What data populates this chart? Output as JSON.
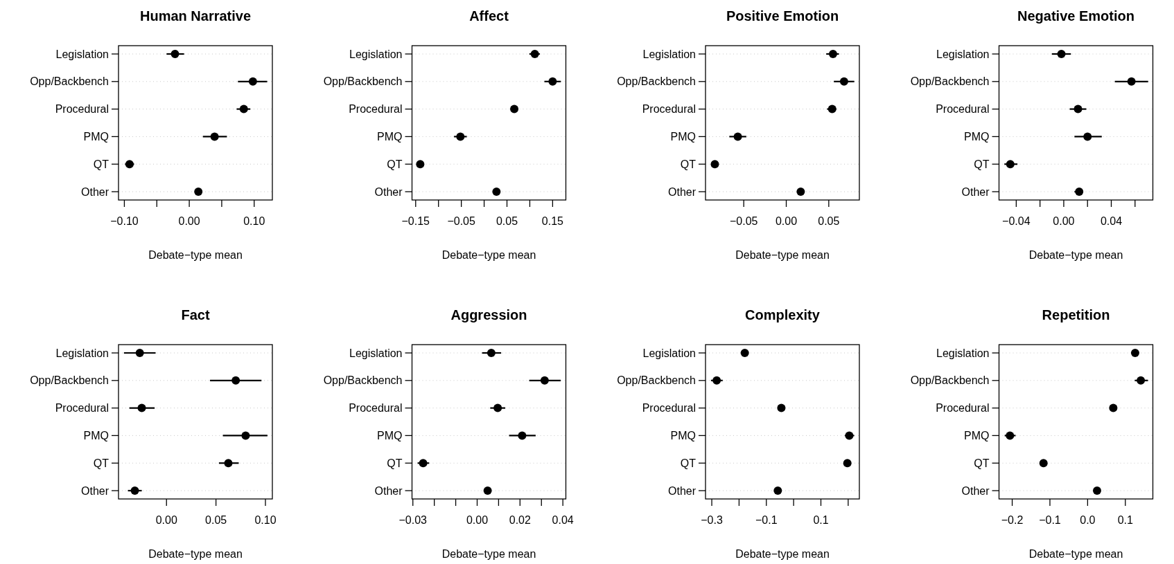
{
  "chart_data": [
    {
      "type": "scatter",
      "orientation": "horizontal",
      "title": "Human Narrative",
      "xlabel": "Debate−type mean",
      "categories": [
        "Legislation",
        "Opp/Backbench",
        "Procedural",
        "PMQ",
        "QT",
        "Other"
      ],
      "values": [
        -0.022,
        0.098,
        0.084,
        0.039,
        -0.092,
        0.014
      ],
      "errors": [
        [
          -0.035,
          -0.008
        ],
        [
          0.075,
          0.12
        ],
        [
          0.073,
          0.094
        ],
        [
          0.021,
          0.058
        ],
        [
          -0.099,
          -0.085
        ],
        [
          0.01,
          0.019
        ]
      ],
      "color": "#000000",
      "marker": "circle",
      "grid": "y",
      "xlim": [
        -0.109,
        0.128
      ],
      "xticks": [
        {
          "value": -0.1,
          "label": "−0.10"
        },
        {
          "value": -0.05,
          "label": null
        },
        {
          "value": 0,
          "label": "0.00"
        },
        {
          "value": 0.05,
          "label": null
        },
        {
          "value": 0.1,
          "label": "0.10"
        }
      ]
    },
    {
      "type": "scatter",
      "orientation": "horizontal",
      "title": "Affect",
      "xlabel": "Debate−type mean",
      "categories": [
        "Legislation",
        "Opp/Backbench",
        "Procedural",
        "PMQ",
        "QT",
        "Other"
      ],
      "values": [
        0.111,
        0.15,
        0.066,
        -0.052,
        -0.14,
        0.027
      ],
      "errors": [
        [
          0.099,
          0.122
        ],
        [
          0.132,
          0.168
        ],
        [
          0.06,
          0.073
        ],
        [
          -0.066,
          -0.038
        ],
        [
          -0.147,
          -0.134
        ],
        [
          0.022,
          0.032
        ]
      ],
      "color": "#000000",
      "marker": "circle",
      "grid": "y",
      "xlim": [
        -0.158,
        0.179
      ],
      "xticks": [
        {
          "value": -0.15,
          "label": "−0.15"
        },
        {
          "value": -0.1,
          "label": null
        },
        {
          "value": -0.05,
          "label": "−0.05"
        },
        {
          "value": 0,
          "label": null
        },
        {
          "value": 0.05,
          "label": "0.05"
        },
        {
          "value": 0.1,
          "label": null
        },
        {
          "value": 0.15,
          "label": "0.15"
        }
      ]
    },
    {
      "type": "scatter",
      "orientation": "horizontal",
      "title": "Positive Emotion",
      "xlabel": "Debate−type mean",
      "categories": [
        "Legislation",
        "Opp/Backbench",
        "Procedural",
        "PMQ",
        "QT",
        "Other"
      ],
      "values": [
        0.055,
        0.068,
        0.054,
        -0.057,
        -0.084,
        0.017
      ],
      "errors": [
        [
          0.047,
          0.062
        ],
        [
          0.056,
          0.08
        ],
        [
          0.048,
          0.059
        ],
        [
          -0.067,
          -0.047
        ],
        [
          -0.088,
          -0.081
        ],
        [
          0.015,
          0.019
        ]
      ],
      "color": "#000000",
      "marker": "circle",
      "grid": "y",
      "xlim": [
        -0.095,
        0.086
      ],
      "xticks": [
        {
          "value": -0.05,
          "label": "−0.05"
        },
        {
          "value": 0,
          "label": "0.00"
        },
        {
          "value": 0.05,
          "label": "0.05"
        }
      ]
    },
    {
      "type": "scatter",
      "orientation": "horizontal",
      "title": "Negative Emotion",
      "xlabel": "Debate−type mean",
      "categories": [
        "Legislation",
        "Opp/Backbench",
        "Procedural",
        "PMQ",
        "QT",
        "Other"
      ],
      "values": [
        -0.002,
        0.057,
        0.012,
        0.02,
        -0.045,
        0.013
      ],
      "errors": [
        [
          -0.01,
          0.006
        ],
        [
          0.043,
          0.071
        ],
        [
          0.005,
          0.019
        ],
        [
          0.009,
          0.032
        ],
        [
          -0.05,
          -0.039
        ],
        [
          0.009,
          0.016
        ]
      ],
      "color": "#000000",
      "marker": "circle",
      "grid": "y",
      "xlim": [
        -0.0545,
        0.075
      ],
      "xticks": [
        {
          "value": -0.04,
          "label": "−0.04"
        },
        {
          "value": -0.02,
          "label": null
        },
        {
          "value": 0,
          "label": "0.00"
        },
        {
          "value": 0.02,
          "label": null
        },
        {
          "value": 0.04,
          "label": "0.04"
        },
        {
          "value": 0.06,
          "label": null
        }
      ]
    },
    {
      "type": "scatter",
      "orientation": "horizontal",
      "title": "Fact",
      "xlabel": "Debate−type mean",
      "categories": [
        "Legislation",
        "Opp/Backbench",
        "Procedural",
        "PMQ",
        "QT",
        "Other"
      ],
      "values": [
        -0.027,
        0.07,
        -0.025,
        0.08,
        0.0625,
        -0.032
      ],
      "errors": [
        [
          -0.043,
          -0.011
        ],
        [
          0.044,
          0.096
        ],
        [
          -0.0375,
          -0.012
        ],
        [
          0.057,
          0.102
        ],
        [
          0.053,
          0.073
        ],
        [
          -0.039,
          -0.025
        ]
      ],
      "color": "#000000",
      "marker": "circle",
      "grid": "y",
      "xlim": [
        -0.0485,
        0.107
      ],
      "xticks": [
        {
          "value": 0,
          "label": "0.00"
        },
        {
          "value": 0.05,
          "label": "0.05"
        },
        {
          "value": 0.1,
          "label": "0.10"
        }
      ]
    },
    {
      "type": "scatter",
      "orientation": "horizontal",
      "title": "Aggression",
      "xlabel": "Debate−type mean",
      "categories": [
        "Legislation",
        "Opp/Backbench",
        "Procedural",
        "PMQ",
        "QT",
        "Other"
      ],
      "values": [
        0.0066,
        0.0315,
        0.0096,
        0.021,
        -0.0252,
        0.0049
      ],
      "errors": [
        [
          0.0023,
          0.0112
        ],
        [
          0.0243,
          0.039
        ],
        [
          0.0061,
          0.0131
        ],
        [
          0.0149,
          0.0273
        ],
        [
          -0.0278,
          -0.0224
        ],
        [
          0.0035,
          0.0065
        ]
      ],
      "color": "#000000",
      "marker": "circle",
      "grid": "y",
      "xlim": [
        -0.0304,
        0.0414
      ],
      "xticks": [
        {
          "value": -0.03,
          "label": "−0.03"
        },
        {
          "value": -0.02,
          "label": null
        },
        {
          "value": -0.01,
          "label": null
        },
        {
          "value": 0,
          "label": "0.00"
        },
        {
          "value": 0.01,
          "label": null
        },
        {
          "value": 0.02,
          "label": "0.02"
        },
        {
          "value": 0.03,
          "label": null
        },
        {
          "value": 0.04,
          "label": "0.04"
        }
      ]
    },
    {
      "type": "scatter",
      "orientation": "horizontal",
      "title": "Complexity",
      "xlabel": "Debate−type mean",
      "categories": [
        "Legislation",
        "Opp/Backbench",
        "Procedural",
        "PMQ",
        "QT",
        "Other"
      ],
      "values": [
        -0.179,
        -0.282,
        -0.045,
        0.204,
        0.197,
        -0.058
      ],
      "errors": [
        null,
        [
          -0.303,
          -0.26
        ],
        null,
        [
          0.188,
          0.222
        ],
        null,
        null
      ],
      "color": "#000000",
      "marker": "circle",
      "grid": "y",
      "xlim": [
        -0.323,
        0.241
      ],
      "xticks": [
        {
          "value": -0.3,
          "label": "−0.3"
        },
        {
          "value": -0.2,
          "label": null
        },
        {
          "value": -0.1,
          "label": "−0.1"
        },
        {
          "value": 0,
          "label": null
        },
        {
          "value": 0.1,
          "label": "0.1"
        },
        {
          "value": 0.2,
          "label": null
        }
      ]
    },
    {
      "type": "scatter",
      "orientation": "horizontal",
      "title": "Repetition",
      "xlabel": "Debate−type mean",
      "categories": [
        "Legislation",
        "Opp/Backbench",
        "Procedural",
        "PMQ",
        "QT",
        "Other"
      ],
      "values": [
        0.126,
        0.141,
        0.068,
        -0.206,
        -0.117,
        0.025
      ],
      "errors": [
        null,
        [
          0.125,
          0.16
        ],
        null,
        [
          -0.22,
          -0.191
        ],
        null,
        null
      ],
      "color": "#000000",
      "marker": "circle",
      "grid": "y",
      "xlim": [
        -0.235,
        0.173
      ],
      "xticks": [
        {
          "value": -0.2,
          "label": "−0.2"
        },
        {
          "value": -0.1,
          "label": "−0.1"
        },
        {
          "value": 0,
          "label": "0.0"
        },
        {
          "value": 0.1,
          "label": "0.1"
        }
      ]
    }
  ]
}
